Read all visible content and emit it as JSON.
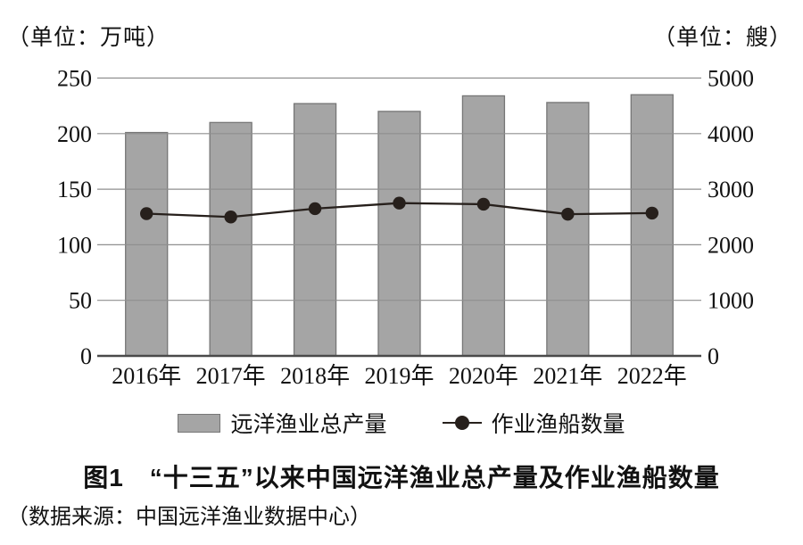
{
  "chart_data": {
    "type": "bar",
    "combo": "bar+line",
    "title": "图1　“十三五”以来中国远洋渔业总产量及作业渔船数量",
    "source": "（数据来源：中国远洋渔业数据中心）",
    "categories": [
      "2016年",
      "2017年",
      "2018年",
      "2019年",
      "2020年",
      "2021年",
      "2022年"
    ],
    "series": [
      {
        "name": "远洋渔业总产量",
        "type": "bar",
        "axis": "left",
        "unit": "万吨",
        "values": [
          201,
          210,
          227,
          220,
          234,
          228,
          235
        ]
      },
      {
        "name": "作业渔船数量",
        "type": "line",
        "axis": "right",
        "unit": "艘",
        "values": [
          2560,
          2500,
          2650,
          2750,
          2730,
          2550,
          2570
        ]
      }
    ],
    "left_axis": {
      "label": "（单位：万吨）",
      "ticks": [
        0,
        50,
        100,
        150,
        200,
        250
      ],
      "range": [
        0,
        250
      ]
    },
    "right_axis": {
      "label": "（单位：艘）",
      "ticks": [
        0,
        1000,
        2000,
        3000,
        4000,
        5000
      ],
      "range": [
        0,
        5000
      ]
    },
    "grid": true,
    "legend_position": "bottom",
    "colors": {
      "bar_fill": "#a5a5a5",
      "bar_border": "#767676",
      "line": "#27201c",
      "grid": "#8f8f8f",
      "axis": "#4a4a4a",
      "text": "#111111"
    }
  }
}
